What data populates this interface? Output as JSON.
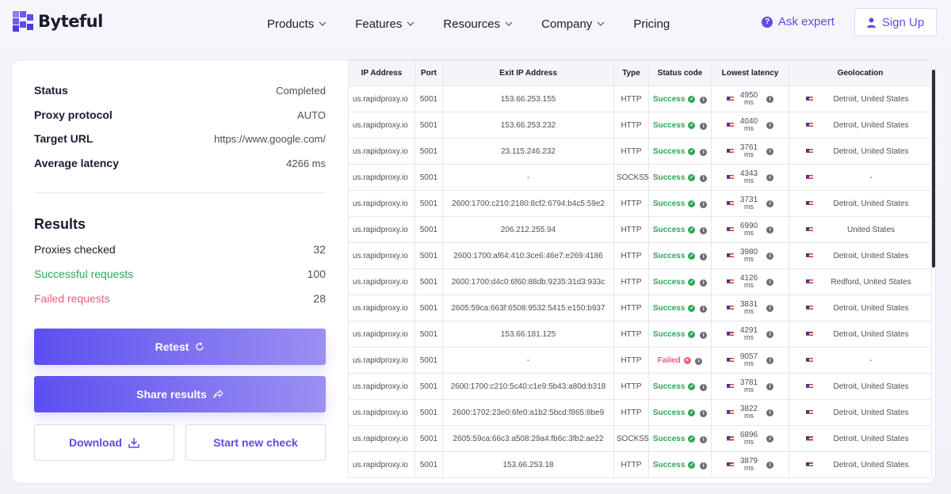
{
  "brand": {
    "name": "Byteful"
  },
  "nav": {
    "items": [
      {
        "label": "Products",
        "dropdown": true
      },
      {
        "label": "Features",
        "dropdown": true
      },
      {
        "label": "Resources",
        "dropdown": true
      },
      {
        "label": "Company",
        "dropdown": true
      },
      {
        "label": "Pricing",
        "dropdown": false
      }
    ],
    "ask_expert": "Ask expert",
    "sign_up": "Sign Up"
  },
  "summary": {
    "status_label": "Status",
    "status_value": "Completed",
    "protocol_label": "Proxy protocol",
    "protocol_value": "AUTO",
    "target_label": "Target URL",
    "target_value": "https://www.google.com/",
    "latency_label": "Average latency",
    "latency_value": "4266 ms"
  },
  "results": {
    "title": "Results",
    "checked_label": "Proxies checked",
    "checked_value": "32",
    "success_label": "Successful requests",
    "success_value": "100",
    "failed_label": "Failed requests",
    "failed_value": "28"
  },
  "actions": {
    "retest": "Retest",
    "share": "Share results",
    "download": "Download",
    "new_check": "Start new check"
  },
  "table": {
    "columns": [
      "IP Address",
      "Port",
      "Exit IP Address",
      "Type",
      "Status code",
      "Lowest latency",
      "Geolocation"
    ],
    "latency_unit": "ms",
    "rows": [
      {
        "ip": "us.rapidproxy.io",
        "port": "5001",
        "exit": "153.66.253.155",
        "type": "HTTP",
        "status": "Success",
        "latency": "4950",
        "geo": "Detroit, United States"
      },
      {
        "ip": "us.rapidproxy.io",
        "port": "5001",
        "exit": "153.66.253.232",
        "type": "HTTP",
        "status": "Success",
        "latency": "4040",
        "geo": "Detroit, United States"
      },
      {
        "ip": "us.rapidproxy.io",
        "port": "5001",
        "exit": "23.115.246.232",
        "type": "HTTP",
        "status": "Success",
        "latency": "3761",
        "geo": "Detroit, United States"
      },
      {
        "ip": "us.rapidproxy.io",
        "port": "5001",
        "exit": "-",
        "type": "SOCKS5",
        "status": "Success",
        "latency": "4343",
        "geo": "-"
      },
      {
        "ip": "us.rapidproxy.io",
        "port": "5001",
        "exit": "2600:1700:c210:2180:8cf2:6794:b4c5:59e2",
        "type": "HTTP",
        "status": "Success",
        "latency": "3731",
        "geo": "Detroit, United States"
      },
      {
        "ip": "us.rapidproxy.io",
        "port": "5001",
        "exit": "206.212.255.94",
        "type": "HTTP",
        "status": "Success",
        "latency": "6990",
        "geo": "United States"
      },
      {
        "ip": "us.rapidproxy.io",
        "port": "5001",
        "exit": "2600:1700:af64:410:3ce6:46e7:e269:4186",
        "type": "HTTP",
        "status": "Success",
        "latency": "3980",
        "geo": "Detroit, United States"
      },
      {
        "ip": "us.rapidproxy.io",
        "port": "5001",
        "exit": "2600:1700:d4c0:6f60:88db:9235:31d3:933c",
        "type": "HTTP",
        "status": "Success",
        "latency": "4126",
        "geo": "Redford, United States"
      },
      {
        "ip": "us.rapidproxy.io",
        "port": "5001",
        "exit": "2605:59ca:663f:6508:9532:5415:e150:b937",
        "type": "HTTP",
        "status": "Success",
        "latency": "3831",
        "geo": "Detroit, United States"
      },
      {
        "ip": "us.rapidproxy.io",
        "port": "5001",
        "exit": "153.66.181.125",
        "type": "HTTP",
        "status": "Success",
        "latency": "4291",
        "geo": "Detroit, United States"
      },
      {
        "ip": "us.rapidproxy.io",
        "port": "5001",
        "exit": "-",
        "type": "HTTP",
        "status": "Failed",
        "latency": "9057",
        "geo": "-"
      },
      {
        "ip": "us.rapidproxy.io",
        "port": "5001",
        "exit": "2600:1700:c210:5c40:c1e9:5b43:a80d:b318",
        "type": "HTTP",
        "status": "Success",
        "latency": "3781",
        "geo": "Detroit, United States"
      },
      {
        "ip": "us.rapidproxy.io",
        "port": "5001",
        "exit": "2600:1702:23e0:6fe0:a1b2:5bcd:f865:8be9",
        "type": "HTTP",
        "status": "Success",
        "latency": "3822",
        "geo": "Detroit, United States"
      },
      {
        "ip": "us.rapidproxy.io",
        "port": "5001",
        "exit": "2605:59ca:66c3:a508:29a4:fb6c:3fb2:ae22",
        "type": "SOCKS5",
        "status": "Success",
        "latency": "6896",
        "geo": "Detroit, United States"
      },
      {
        "ip": "us.rapidproxy.io",
        "port": "5001",
        "exit": "153.66.253.18",
        "type": "HTTP",
        "status": "Success",
        "latency": "3879",
        "geo": "Detroit, United States"
      }
    ]
  },
  "colors": {
    "accent": "#5b4ee6",
    "success": "#2ca65a",
    "failed": "#e8607a"
  }
}
